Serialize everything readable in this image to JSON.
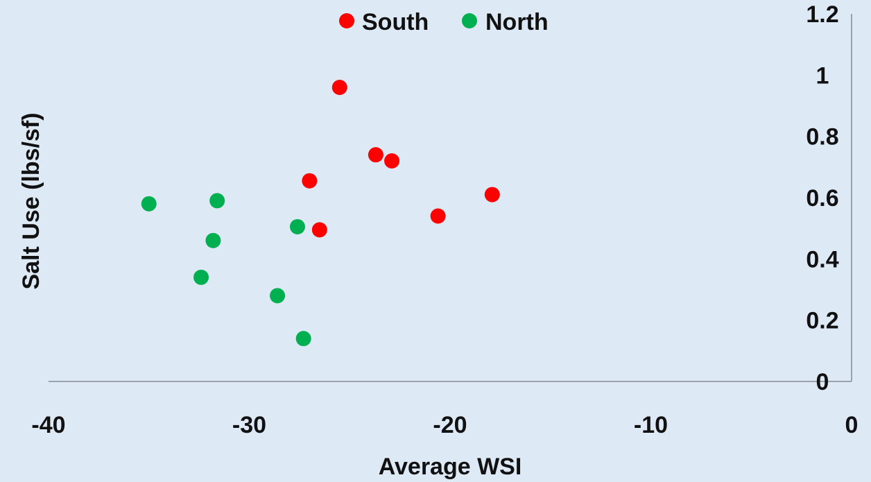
{
  "chart_data": {
    "type": "scatter",
    "title": "",
    "xlabel": "Average WSI",
    "ylabel": "Salt Use (lbs/sf)",
    "xlim": [
      -40,
      0
    ],
    "ylim": [
      0,
      1.2
    ],
    "x_ticks": [
      "-40",
      "-30",
      "-20",
      "-10",
      "0"
    ],
    "y_ticks": [
      "0",
      "0.2",
      "0.4",
      "0.6",
      "0.8",
      "1",
      "1.2"
    ],
    "grid": false,
    "legend_position": "top",
    "series": [
      {
        "name": "South",
        "color": "#ff0000",
        "points": [
          {
            "x": -25.5,
            "y": 0.96
          },
          {
            "x": -23.7,
            "y": 0.74
          },
          {
            "x": -22.9,
            "y": 0.72
          },
          {
            "x": -27.0,
            "y": 0.655
          },
          {
            "x": -17.9,
            "y": 0.61
          },
          {
            "x": -20.6,
            "y": 0.54
          },
          {
            "x": -26.5,
            "y": 0.495
          }
        ]
      },
      {
        "name": "North",
        "color": "#00b050",
        "points": [
          {
            "x": -35.0,
            "y": 0.58
          },
          {
            "x": -31.6,
            "y": 0.59
          },
          {
            "x": -27.6,
            "y": 0.505
          },
          {
            "x": -31.8,
            "y": 0.46
          },
          {
            "x": -32.4,
            "y": 0.34
          },
          {
            "x": -28.6,
            "y": 0.28
          },
          {
            "x": -27.3,
            "y": 0.14
          }
        ]
      }
    ]
  }
}
